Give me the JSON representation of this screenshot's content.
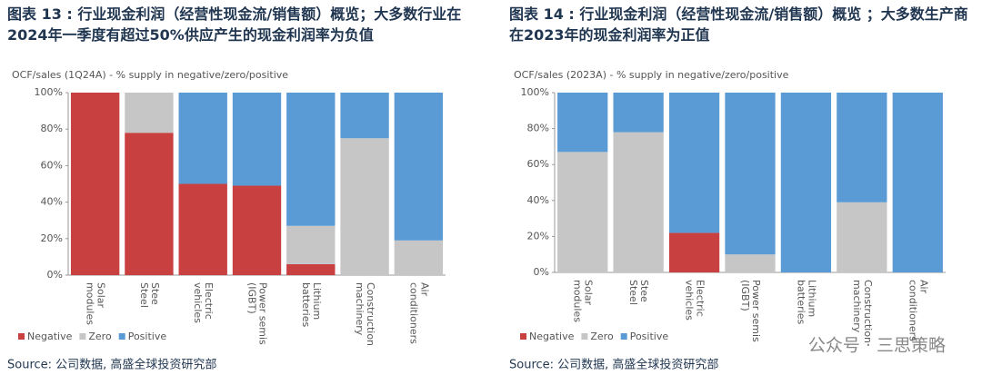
{
  "chart_data": [
    {
      "type": "stacked_bar",
      "title": "图表 13 : 行业现金利润（经营性现金流/销售额）概览；大多数行业在2024年一季度有超过50%供应产生的现金利润率为负值",
      "subtitle": "OCF/sales (1Q24A) - % supply in negative/zero/positive",
      "source": "Source: 公司数据, 高盛全球投资研究部",
      "categories": [
        "Solar modules",
        "Steel",
        "Electric vehicles",
        "Power semis (IGBT)",
        "Lithium batteries",
        "Construction machinery",
        "Air conditioners"
      ],
      "series": [
        {
          "name": "Negative",
          "color": "#c8403f",
          "values": [
            100,
            78,
            50,
            49,
            6,
            0,
            0
          ]
        },
        {
          "name": "Zero",
          "color": "#c6c6c6",
          "values": [
            0,
            22,
            0,
            0,
            21,
            75,
            19
          ]
        },
        {
          "name": "Positive",
          "color": "#5b9bd5",
          "values": [
            0,
            0,
            50,
            51,
            73,
            25,
            81
          ]
        }
      ],
      "ylim": [
        0,
        100
      ],
      "yticks": [
        {
          "value": 0,
          "label": "0%"
        },
        {
          "value": 20,
          "label": "20%"
        },
        {
          "value": 40,
          "label": "40%"
        },
        {
          "value": 60,
          "label": "60%"
        },
        {
          "value": 80,
          "label": "80%"
        },
        {
          "value": 100,
          "label": "100%"
        }
      ]
    },
    {
      "type": "stacked_bar",
      "title": "图表 14 : 行业现金利润（经营性现金流/销售额）概览 ；大多数生产商在2023年的现金利润率为正值",
      "subtitle": "OCF/sales (2023A) - % supply in negative/zero/positive",
      "source": "Source: 公司数据, 高盛全球投资研究部",
      "categories": [
        "Solar modules",
        "Steel",
        "Electric vehicles",
        "Power semis (IGBT)",
        "Lithium batteries",
        "Construction machinery",
        "Air conditioners"
      ],
      "series": [
        {
          "name": "Negative",
          "color": "#c8403f",
          "values": [
            0,
            0,
            22,
            0,
            0,
            0,
            0
          ]
        },
        {
          "name": "Zero",
          "color": "#c6c6c6",
          "values": [
            67,
            78,
            0,
            10,
            0,
            39,
            0
          ]
        },
        {
          "name": "Positive",
          "color": "#5b9bd5",
          "values": [
            33,
            22,
            78,
            90,
            100,
            61,
            100
          ]
        }
      ],
      "ylim": [
        0,
        100
      ],
      "yticks": [
        {
          "value": 0,
          "label": "0%"
        },
        {
          "value": 20,
          "label": "20%"
        },
        {
          "value": 40,
          "label": "40%"
        },
        {
          "value": 60,
          "label": "60%"
        },
        {
          "value": 80,
          "label": "80%"
        },
        {
          "value": 100,
          "label": "100%"
        }
      ]
    }
  ],
  "watermark": "公众号 · 三思策略"
}
